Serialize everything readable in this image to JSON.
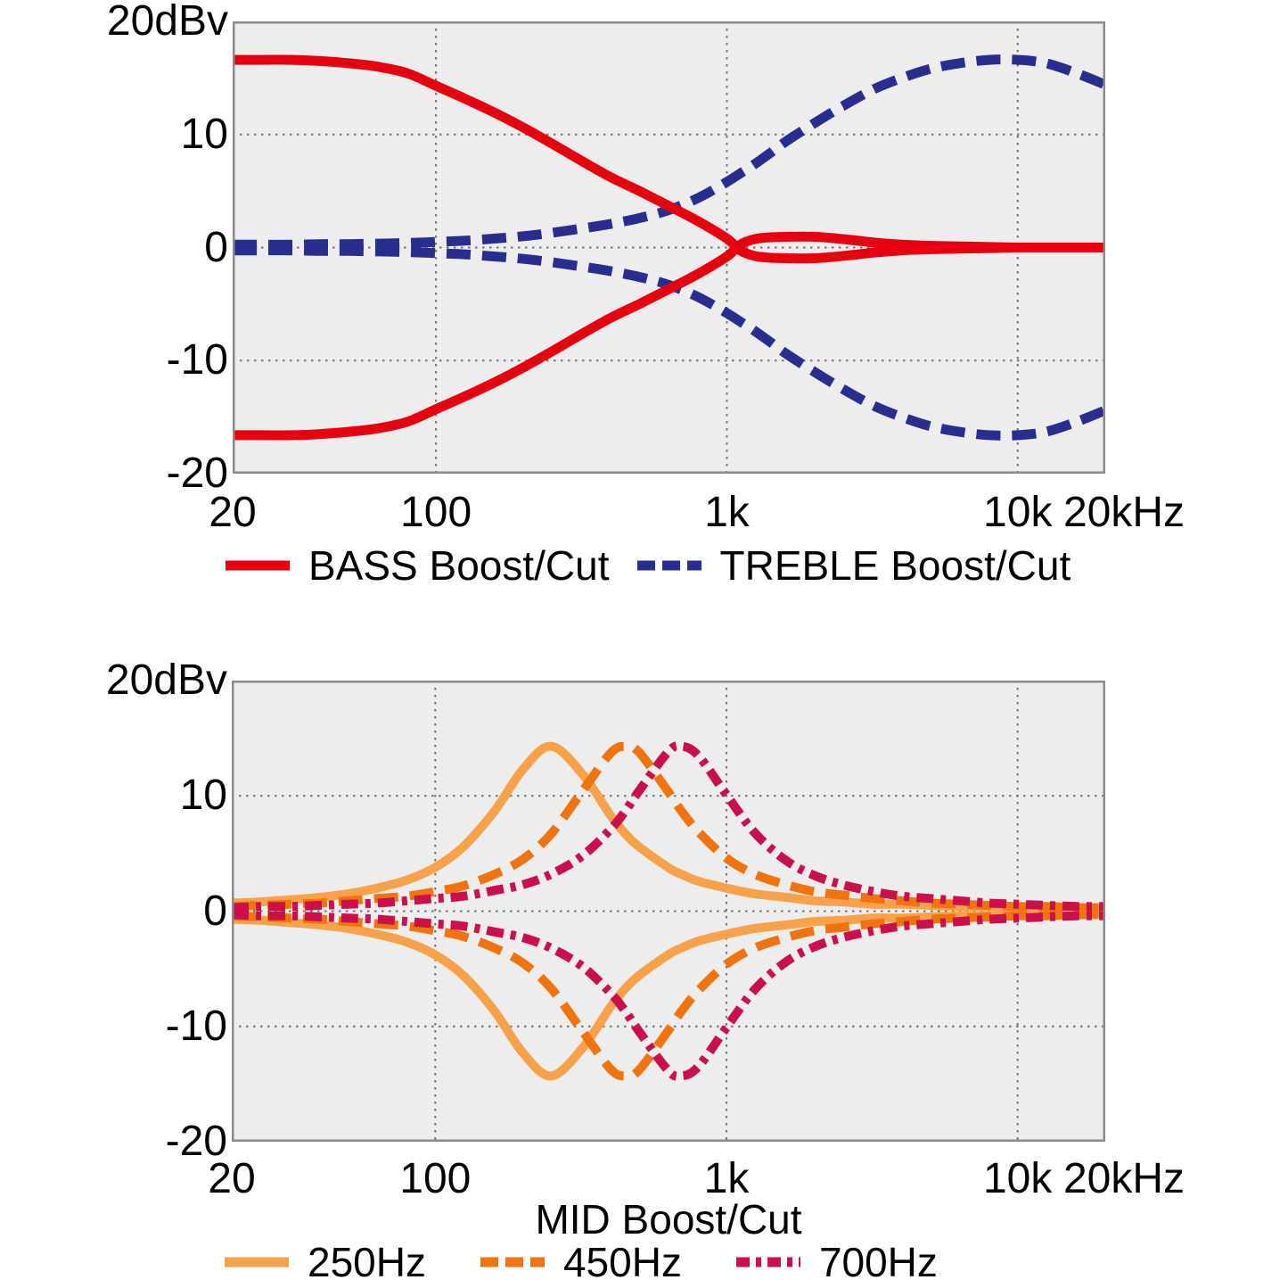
{
  "style": {
    "plot_bg": "#EDEDED",
    "grid_color": "#6E6E6E",
    "border_color": "#8A8A8A",
    "text_color": "#000000"
  },
  "chart_data": [
    {
      "type": "line",
      "name": "bass-treble-boost-cut",
      "title": "",
      "xlabel": "",
      "ylabel": "20dBv",
      "xscale": "log",
      "xlim": [
        20,
        20000
      ],
      "ylim": [
        -20,
        20
      ],
      "grid": true,
      "grid_x": [
        100,
        1000,
        10000
      ],
      "grid_y": [
        10,
        0,
        -10
      ],
      "yticks": [
        {
          "v": 20,
          "label": "20dBv"
        },
        {
          "v": 10,
          "label": "10"
        },
        {
          "v": 0,
          "label": "0"
        },
        {
          "v": -10,
          "label": "-10"
        },
        {
          "v": -20,
          "label": "-20"
        }
      ],
      "xticks": [
        {
          "f": 20,
          "label": "20"
        },
        {
          "f": 100,
          "label": "100"
        },
        {
          "f": 1000,
          "label": "1k"
        },
        {
          "f": 10000,
          "label": "10k"
        },
        {
          "f": 20000,
          "label": "20kHz"
        }
      ],
      "legend": [
        {
          "label": "BASS Boost/Cut",
          "color": "#E6000F",
          "style": "solid"
        },
        {
          "label": "TREBLE Boost/Cut",
          "color": "#282D8F",
          "style": "dashed"
        }
      ],
      "legend_position": "bottom",
      "series": [
        {
          "name": "treble-boost",
          "color": "#282D8F",
          "style": "dashed",
          "f": [
            20,
            25,
            32,
            40,
            50,
            63,
            80,
            100,
            125,
            160,
            200,
            250,
            320,
            400,
            500,
            630,
            800,
            1000,
            1120,
            1250,
            1400,
            1600,
            2000,
            2500,
            3200,
            4000,
            5000,
            6300,
            8000,
            10000,
            12500,
            16000,
            20000
          ],
          "db": [
            0.25,
            0.25,
            0.25,
            0.3,
            0.3,
            0.35,
            0.4,
            0.5,
            0.6,
            0.8,
            1.0,
            1.3,
            1.7,
            2.1,
            2.6,
            3.3,
            4.4,
            5.8,
            6.6,
            7.4,
            8.3,
            9.4,
            11.0,
            12.5,
            14.0,
            15.0,
            15.8,
            16.3,
            16.6,
            16.6,
            16.3,
            15.4,
            14.4
          ]
        },
        {
          "name": "treble-cut",
          "color": "#282D8F",
          "style": "dashed",
          "f": [
            20,
            25,
            32,
            40,
            50,
            63,
            80,
            100,
            125,
            160,
            200,
            250,
            320,
            400,
            500,
            630,
            800,
            1000,
            1120,
            1250,
            1400,
            1600,
            2000,
            2500,
            3200,
            4000,
            5000,
            6300,
            8000,
            10000,
            12500,
            16000,
            20000
          ],
          "db": [
            -0.25,
            -0.25,
            -0.25,
            -0.3,
            -0.3,
            -0.35,
            -0.4,
            -0.5,
            -0.6,
            -0.8,
            -1.0,
            -1.3,
            -1.7,
            -2.1,
            -2.6,
            -3.3,
            -4.4,
            -5.8,
            -6.6,
            -7.4,
            -8.3,
            -9.4,
            -11.0,
            -12.5,
            -14.0,
            -15.0,
            -15.8,
            -16.3,
            -16.6,
            -16.6,
            -16.3,
            -15.4,
            -14.4
          ]
        },
        {
          "name": "bass-boost",
          "color": "#E6000F",
          "style": "solid",
          "f": [
            20,
            25,
            32,
            40,
            50,
            63,
            80,
            100,
            125,
            160,
            200,
            250,
            320,
            400,
            500,
            630,
            800,
            1000,
            1120,
            1250,
            1400,
            1600,
            2000,
            2500,
            3200,
            4000,
            5000,
            6300,
            8000,
            10000,
            12500,
            16000,
            20000
          ],
          "db": [
            16.6,
            16.6,
            16.6,
            16.5,
            16.3,
            16.0,
            15.4,
            14.3,
            13.2,
            11.9,
            10.6,
            9.2,
            7.6,
            6.2,
            5.0,
            3.7,
            2.3,
            0.8,
            -0.3,
            -0.75,
            -0.9,
            -0.95,
            -0.95,
            -0.75,
            -0.45,
            -0.25,
            -0.15,
            -0.1,
            -0.05,
            0,
            0,
            0,
            0
          ]
        },
        {
          "name": "bass-cut",
          "color": "#E6000F",
          "style": "solid",
          "f": [
            20,
            25,
            32,
            40,
            50,
            63,
            80,
            100,
            125,
            160,
            200,
            250,
            320,
            400,
            500,
            630,
            800,
            1000,
            1120,
            1250,
            1400,
            1600,
            2000,
            2500,
            3200,
            4000,
            5000,
            6300,
            8000,
            10000,
            12500,
            16000,
            20000
          ],
          "db": [
            -16.6,
            -16.6,
            -16.6,
            -16.5,
            -16.3,
            -16.0,
            -15.4,
            -14.3,
            -13.2,
            -11.9,
            -10.6,
            -9.2,
            -7.6,
            -6.2,
            -5.0,
            -3.7,
            -2.3,
            -0.8,
            0.3,
            0.75,
            0.9,
            0.95,
            0.95,
            0.75,
            0.45,
            0.25,
            0.15,
            0.1,
            0.05,
            0,
            0,
            0,
            0
          ]
        }
      ]
    },
    {
      "type": "line",
      "name": "mid-boost-cut",
      "title": "",
      "xlabel": "MID Boost/Cut",
      "ylabel": "20dBv",
      "xscale": "log",
      "xlim": [
        20,
        20000
      ],
      "ylim": [
        -20,
        20
      ],
      "grid": true,
      "grid_x": [
        100,
        1000,
        10000
      ],
      "grid_y": [
        10,
        0,
        -10
      ],
      "yticks": [
        {
          "v": 20,
          "label": "20dBv"
        },
        {
          "v": 10,
          "label": "10"
        },
        {
          "v": 0,
          "label": "0"
        },
        {
          "v": -10,
          "label": "-10"
        },
        {
          "v": -20,
          "label": "-20"
        }
      ],
      "xticks": [
        {
          "f": 20,
          "label": "20"
        },
        {
          "f": 100,
          "label": "100"
        },
        {
          "f": 1000,
          "label": "1k"
        },
        {
          "f": 10000,
          "label": "10k"
        },
        {
          "f": 20000,
          "label": "20kHz"
        }
      ],
      "legend": [
        {
          "label": "250Hz",
          "color": "#F7A14B",
          "style": "solid"
        },
        {
          "label": "450Hz",
          "color": "#F0730E",
          "style": "dashed"
        },
        {
          "label": "700Hz",
          "color": "#CB0F4A",
          "style": "dashdot"
        }
      ],
      "legend_position": "bottom",
      "series": [
        {
          "name": "mid-250hz-boost",
          "color": "#F7A14B",
          "style": "solid",
          "f": [
            20,
            25,
            32,
            40,
            50,
            63,
            80,
            100,
            125,
            160,
            200,
            250,
            320,
            400,
            450,
            500,
            630,
            700,
            800,
            1000,
            1250,
            1600,
            2000,
            2500,
            3200,
            4000,
            5000,
            6300,
            8000,
            10000,
            12500,
            16000,
            20000
          ],
          "db": [
            0.7,
            0.8,
            1.0,
            1.2,
            1.5,
            2.0,
            2.7,
            3.8,
            5.6,
            8.7,
            12.3,
            14.3,
            11.9,
            8.3,
            6.7,
            5.6,
            3.8,
            3.2,
            2.6,
            2.0,
            1.5,
            1.2,
            0.9,
            0.8,
            0.6,
            0.6,
            0.5,
            0.4,
            0.4,
            0.3,
            0.3,
            0.2,
            0.2
          ]
        },
        {
          "name": "mid-250hz-cut",
          "color": "#F7A14B",
          "style": "solid",
          "f": [
            20,
            25,
            32,
            40,
            50,
            63,
            80,
            100,
            125,
            160,
            200,
            250,
            320,
            400,
            450,
            500,
            630,
            700,
            800,
            1000,
            1250,
            1600,
            2000,
            2500,
            3200,
            4000,
            5000,
            6300,
            8000,
            10000,
            12500,
            16000,
            20000
          ],
          "db": [
            -0.7,
            -0.8,
            -1.0,
            -1.2,
            -1.5,
            -2.0,
            -2.7,
            -3.8,
            -5.6,
            -8.7,
            -12.3,
            -14.3,
            -11.9,
            -8.3,
            -6.7,
            -5.6,
            -3.8,
            -3.2,
            -2.6,
            -2.0,
            -1.5,
            -1.2,
            -0.9,
            -0.8,
            -0.6,
            -0.6,
            -0.5,
            -0.4,
            -0.4,
            -0.3,
            -0.3,
            -0.2,
            -0.2
          ]
        },
        {
          "name": "mid-450hz-boost",
          "color": "#F0730E",
          "style": "dashed",
          "f": [
            20,
            25,
            32,
            40,
            50,
            63,
            80,
            100,
            125,
            160,
            200,
            250,
            320,
            400,
            450,
            500,
            630,
            700,
            800,
            1000,
            1250,
            1600,
            2000,
            2500,
            3200,
            4000,
            5000,
            6300,
            8000,
            10000,
            12500,
            16000,
            20000
          ],
          "db": [
            0.4,
            0.5,
            0.6,
            0.7,
            0.9,
            1.1,
            1.3,
            1.7,
            2.2,
            3.2,
            4.5,
            6.7,
            10.4,
            13.7,
            14.3,
            13.8,
            10.4,
            8.7,
            6.9,
            4.6,
            3.2,
            2.3,
            1.7,
            1.4,
            1.1,
            0.9,
            0.7,
            0.6,
            0.5,
            0.4,
            0.4,
            0.3,
            0.3
          ]
        },
        {
          "name": "mid-450hz-cut",
          "color": "#F0730E",
          "style": "dashed",
          "f": [
            20,
            25,
            32,
            40,
            50,
            63,
            80,
            100,
            125,
            160,
            200,
            250,
            320,
            400,
            450,
            500,
            630,
            700,
            800,
            1000,
            1250,
            1600,
            2000,
            2500,
            3200,
            4000,
            5000,
            6300,
            8000,
            10000,
            12500,
            16000,
            20000
          ],
          "db": [
            -0.4,
            -0.5,
            -0.6,
            -0.7,
            -0.9,
            -1.1,
            -1.3,
            -1.7,
            -2.2,
            -3.2,
            -4.5,
            -6.7,
            -10.4,
            -13.7,
            -14.3,
            -13.8,
            -10.4,
            -8.7,
            -6.9,
            -4.6,
            -3.2,
            -2.3,
            -1.7,
            -1.4,
            -1.1,
            -0.9,
            -0.7,
            -0.6,
            -0.5,
            -0.4,
            -0.4,
            -0.3,
            -0.3
          ]
        },
        {
          "name": "mid-700hz-boost",
          "color": "#CB0F4A",
          "style": "dashdot",
          "f": [
            20,
            25,
            32,
            40,
            50,
            63,
            80,
            100,
            125,
            160,
            200,
            250,
            320,
            400,
            450,
            500,
            630,
            700,
            800,
            1000,
            1250,
            1600,
            2000,
            2500,
            3200,
            4000,
            5000,
            6300,
            8000,
            10000,
            12500,
            16000,
            20000
          ],
          "db": [
            0.3,
            0.4,
            0.4,
            0.5,
            0.6,
            0.7,
            0.9,
            1.1,
            1.3,
            1.8,
            2.3,
            3.2,
            4.8,
            7.1,
            8.7,
            10.4,
            13.8,
            14.3,
            13.5,
            10.1,
            6.8,
            4.4,
            3.1,
            2.3,
            1.7,
            1.3,
            1.1,
            0.9,
            0.7,
            0.6,
            0.5,
            0.4,
            0.4
          ]
        },
        {
          "name": "mid-700hz-cut",
          "color": "#CB0F4A",
          "style": "dashdot",
          "f": [
            20,
            25,
            32,
            40,
            50,
            63,
            80,
            100,
            125,
            160,
            200,
            250,
            320,
            400,
            450,
            500,
            630,
            700,
            800,
            1000,
            1250,
            1600,
            2000,
            2500,
            3200,
            4000,
            5000,
            6300,
            8000,
            10000,
            12500,
            16000,
            20000
          ],
          "db": [
            -0.3,
            -0.4,
            -0.4,
            -0.5,
            -0.6,
            -0.7,
            -0.9,
            -1.1,
            -1.3,
            -1.8,
            -2.3,
            -3.2,
            -4.8,
            -7.1,
            -8.7,
            -10.4,
            -13.8,
            -14.3,
            -13.5,
            -10.1,
            -6.8,
            -4.4,
            -3.1,
            -2.3,
            -1.7,
            -1.3,
            -1.1,
            -0.9,
            -0.7,
            -0.6,
            -0.5,
            -0.4,
            -0.4
          ]
        }
      ]
    }
  ]
}
